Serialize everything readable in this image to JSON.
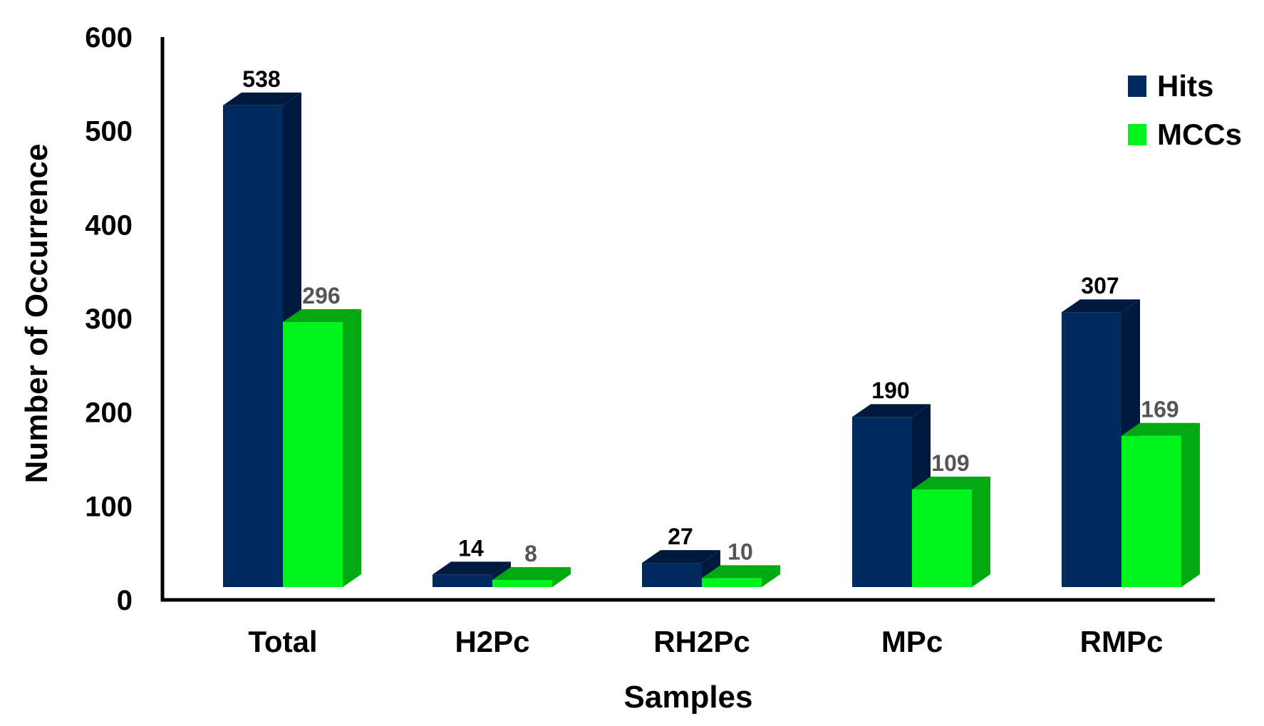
{
  "chart_data": {
    "type": "bar",
    "style": "3d-clustered",
    "categories": [
      "Total",
      "H2Pc",
      "RH2Pc",
      "MPc",
      "RMPc"
    ],
    "series": [
      {
        "name": "Hits",
        "values": [
          538,
          14,
          27,
          190,
          307
        ],
        "color": "#002B5E",
        "side_color": "#001A3F",
        "label_color": "#000000"
      },
      {
        "name": "MCCs",
        "values": [
          296,
          8,
          10,
          109,
          169
        ],
        "color": "#00F51C",
        "side_color": "#00A812",
        "label_color": "#555555"
      }
    ],
    "xlabel": "Samples",
    "ylabel": "Number of Occurrence",
    "ylim": [
      0,
      600
    ],
    "yticks": [
      "0",
      "100",
      "200",
      "300",
      "400",
      "500",
      "600"
    ],
    "grid": false,
    "legend_position": "top-right"
  }
}
